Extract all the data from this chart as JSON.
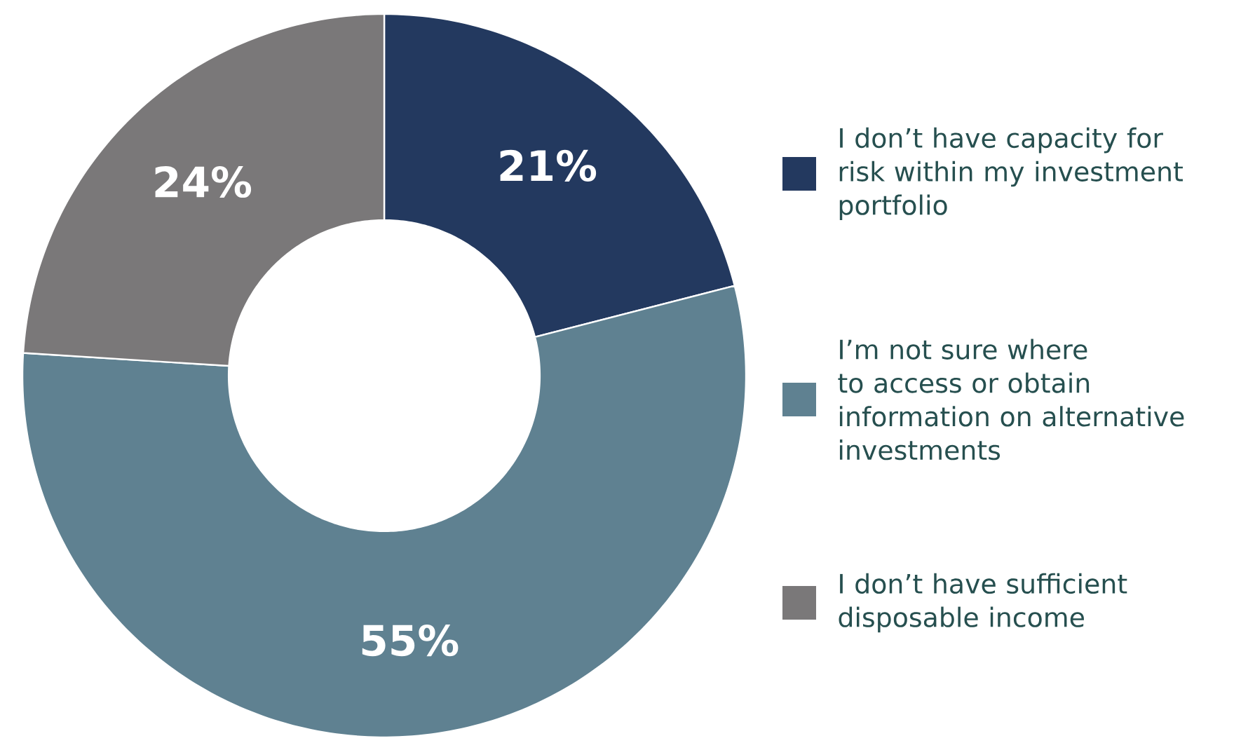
{
  "chart_data": {
    "type": "donut",
    "categories": [
      "I don’t have capacity for risk within my investment portfolio",
      "I’m not sure where to access or obtain information on alternative investments",
      "I don’t have sufficient disposable income"
    ],
    "values": [
      21,
      55,
      24
    ],
    "colors": [
      "#23395f",
      "#5f8191",
      "#7a7879"
    ],
    "value_labels": [
      "21%",
      "55%",
      "24%"
    ],
    "legend": "right"
  }
}
